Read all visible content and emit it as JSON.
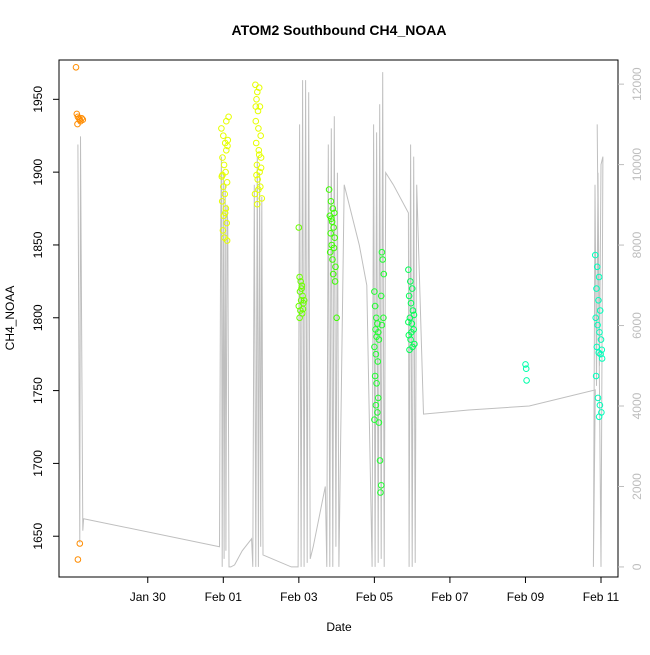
{
  "chart_data": {
    "type": "scatter",
    "title": "ATOM2 Southbound CH4_NOAA",
    "xlabel": "Date",
    "ylabel": "CH4_NOAA",
    "x_unit": "days since Jan 28",
    "xlim": [
      -0.35,
      14.45
    ],
    "ylim": [
      1622,
      1977
    ],
    "y2lim": [
      -250,
      12600
    ],
    "x_ticks": [
      {
        "value": 2,
        "label": "Jan 30"
      },
      {
        "value": 4,
        "label": "Feb 01"
      },
      {
        "value": 6,
        "label": "Feb 03"
      },
      {
        "value": 8,
        "label": "Feb 05"
      },
      {
        "value": 10,
        "label": "Feb 07"
      },
      {
        "value": 12,
        "label": "Feb 09"
      },
      {
        "value": 14,
        "label": "Feb 11"
      }
    ],
    "y_ticks": [
      1650,
      1700,
      1750,
      1800,
      1850,
      1900,
      1950
    ],
    "y_ticks_labels": [
      "1650",
      "1700",
      "1750",
      "1800",
      "1850",
      "1900",
      "1950"
    ],
    "y2_ticks": [
      0,
      2000,
      4000,
      6000,
      8000,
      10000,
      12000
    ],
    "y2_ticks_labels": [
      "0",
      "2000",
      "4000",
      "6000",
      "8000",
      "10000",
      "12000"
    ],
    "colors": {
      "orange": "#ff8c00",
      "yellow": "#e6ff00",
      "yellowgreen": "#b3ff00",
      "green": "#40ff00",
      "green2": "#00ff33",
      "green3": "#00ff66",
      "teal": "#00ffbb",
      "line": "#bfbfbf"
    },
    "series": [
      {
        "name": "orange",
        "color": "#ff8c00",
        "points": [
          [
            0.1,
            1972
          ],
          [
            0.12,
            1940
          ],
          [
            0.15,
            1938
          ],
          [
            0.18,
            1937
          ],
          [
            0.2,
            1936
          ],
          [
            0.22,
            1935
          ],
          [
            0.25,
            1937
          ],
          [
            0.14,
            1933
          ],
          [
            0.28,
            1936
          ],
          [
            0.2,
            1645
          ],
          [
            0.15,
            1634
          ]
        ]
      },
      {
        "name": "yellow-early",
        "color": "#e6ff00",
        "points": [
          [
            3.95,
            1930
          ],
          [
            4.0,
            1925
          ],
          [
            4.05,
            1920
          ],
          [
            4.08,
            1915
          ],
          [
            3.98,
            1910
          ],
          [
            4.02,
            1905
          ],
          [
            4.06,
            1900
          ],
          [
            3.96,
            1897
          ],
          [
            4.1,
            1893
          ],
          [
            4.0,
            1890
          ],
          [
            4.04,
            1885
          ],
          [
            3.97,
            1880
          ],
          [
            4.07,
            1875
          ],
          [
            4.01,
            1870
          ],
          [
            4.09,
            1865
          ],
          [
            3.99,
            1860
          ],
          [
            4.03,
            1855
          ],
          [
            4.1,
            1853
          ],
          [
            4.05,
            1872
          ],
          [
            3.98,
            1898
          ],
          [
            4.12,
            1922
          ],
          [
            4.08,
            1935
          ],
          [
            4.14,
            1938
          ],
          [
            4.11,
            1918
          ]
        ]
      },
      {
        "name": "yellow-late",
        "color": "#e6ff00",
        "points": [
          [
            4.85,
            1960
          ],
          [
            4.9,
            1955
          ],
          [
            4.95,
            1958
          ],
          [
            4.88,
            1950
          ],
          [
            4.92,
            1942
          ],
          [
            4.97,
            1945
          ],
          [
            4.86,
            1935
          ],
          [
            4.93,
            1930
          ],
          [
            4.99,
            1925
          ],
          [
            4.87,
            1920
          ],
          [
            4.94,
            1915
          ],
          [
            5.0,
            1910
          ],
          [
            4.89,
            1905
          ],
          [
            4.96,
            1900
          ],
          [
            4.91,
            1895
          ],
          [
            4.98,
            1890
          ],
          [
            4.84,
            1885
          ],
          [
            5.02,
            1882
          ],
          [
            4.9,
            1878
          ],
          [
            4.95,
            1912
          ],
          [
            4.88,
            1898
          ],
          [
            5.0,
            1903
          ],
          [
            4.86,
            1945
          ],
          [
            4.93,
            1888
          ]
        ]
      },
      {
        "name": "green-1",
        "color": "#6cff00",
        "points": [
          [
            6.0,
            1862
          ],
          [
            6.02,
            1828
          ],
          [
            6.05,
            1825
          ],
          [
            6.08,
            1822
          ],
          [
            6.03,
            1818
          ],
          [
            6.1,
            1815
          ],
          [
            6.06,
            1812
          ],
          [
            6.12,
            1810
          ],
          [
            6.0,
            1808
          ],
          [
            6.04,
            1805
          ],
          [
            6.09,
            1803
          ],
          [
            6.02,
            1800
          ],
          [
            6.14,
            1812
          ],
          [
            6.07,
            1820
          ],
          [
            6.11,
            1806
          ]
        ]
      },
      {
        "name": "green-2",
        "color": "#3cff00",
        "points": [
          [
            6.8,
            1888
          ],
          [
            6.85,
            1880
          ],
          [
            6.9,
            1875
          ],
          [
            6.82,
            1870
          ],
          [
            6.88,
            1866
          ],
          [
            6.92,
            1862
          ],
          [
            6.84,
            1858
          ],
          [
            6.95,
            1855
          ],
          [
            6.87,
            1850
          ],
          [
            6.93,
            1848
          ],
          [
            6.89,
            1840
          ],
          [
            6.97,
            1835
          ],
          [
            6.91,
            1830
          ],
          [
            6.96,
            1825
          ],
          [
            6.86,
            1868
          ],
          [
            7.0,
            1800
          ],
          [
            6.94,
            1872
          ],
          [
            6.83,
            1845
          ]
        ]
      },
      {
        "name": "green-3",
        "color": "#20ff30",
        "points": [
          [
            8.0,
            1818
          ],
          [
            8.02,
            1808
          ],
          [
            8.05,
            1800
          ],
          [
            8.08,
            1796
          ],
          [
            8.03,
            1792
          ],
          [
            8.1,
            1790
          ],
          [
            8.06,
            1787
          ],
          [
            8.12,
            1785
          ],
          [
            8.0,
            1780
          ],
          [
            8.04,
            1775
          ],
          [
            8.09,
            1770
          ],
          [
            8.02,
            1760
          ],
          [
            8.06,
            1755
          ],
          [
            8.1,
            1745
          ],
          [
            8.04,
            1740
          ],
          [
            8.08,
            1735
          ],
          [
            8.0,
            1730
          ],
          [
            8.12,
            1728
          ],
          [
            8.15,
            1702
          ],
          [
            8.18,
            1685
          ],
          [
            8.16,
            1680
          ],
          [
            8.2,
            1845
          ],
          [
            8.22,
            1840
          ],
          [
            8.25,
            1830
          ],
          [
            8.18,
            1815
          ],
          [
            8.2,
            1795
          ],
          [
            8.24,
            1800
          ]
        ]
      },
      {
        "name": "green-4",
        "color": "#00ff55",
        "points": [
          [
            8.9,
            1833
          ],
          [
            8.95,
            1825
          ],
          [
            9.0,
            1820
          ],
          [
            8.92,
            1815
          ],
          [
            8.97,
            1810
          ],
          [
            9.02,
            1805
          ],
          [
            8.94,
            1800
          ],
          [
            8.99,
            1796
          ],
          [
            9.04,
            1792
          ],
          [
            8.91,
            1788
          ],
          [
            8.96,
            1785
          ],
          [
            9.01,
            1780
          ],
          [
            8.93,
            1778
          ],
          [
            9.06,
            1782
          ],
          [
            8.98,
            1790
          ],
          [
            9.05,
            1802
          ],
          [
            8.9,
            1797
          ]
        ]
      },
      {
        "name": "teal-early",
        "color": "#00ffaa",
        "points": [
          [
            12.0,
            1768
          ],
          [
            12.02,
            1765
          ],
          [
            12.03,
            1757
          ]
        ]
      },
      {
        "name": "teal",
        "color": "#00ffbb",
        "points": [
          [
            13.85,
            1843
          ],
          [
            13.9,
            1835
          ],
          [
            13.95,
            1828
          ],
          [
            13.88,
            1820
          ],
          [
            13.93,
            1812
          ],
          [
            13.98,
            1805
          ],
          [
            13.86,
            1800
          ],
          [
            13.91,
            1795
          ],
          [
            13.96,
            1790
          ],
          [
            14.0,
            1785
          ],
          [
            13.89,
            1780
          ],
          [
            13.94,
            1776
          ],
          [
            13.99,
            1775
          ],
          [
            14.02,
            1778
          ],
          [
            13.87,
            1760
          ],
          [
            13.92,
            1745
          ],
          [
            13.97,
            1740
          ],
          [
            14.01,
            1735
          ],
          [
            13.95,
            1732
          ],
          [
            14.03,
            1772
          ]
        ]
      }
    ],
    "altitude_line": [
      [
        0.15,
        10500
      ],
      [
        0.2,
        600
      ],
      [
        0.22,
        10700
      ],
      [
        0.28,
        900
      ],
      [
        0.3,
        1200
      ],
      [
        3.9,
        500
      ],
      [
        3.93,
        8500
      ],
      [
        3.95,
        10200
      ],
      [
        3.97,
        0
      ],
      [
        4.0,
        9800
      ],
      [
        4.02,
        200
      ],
      [
        4.05,
        9500
      ],
      [
        4.07,
        400
      ],
      [
        4.1,
        9000
      ],
      [
        4.12,
        8500
      ],
      [
        4.15,
        0
      ],
      [
        4.2,
        0
      ],
      [
        4.3,
        50
      ],
      [
        4.5,
        400
      ],
      [
        4.75,
        700
      ],
      [
        4.78,
        0
      ],
      [
        4.82,
        9500
      ],
      [
        4.86,
        0
      ],
      [
        4.9,
        10200
      ],
      [
        4.93,
        0
      ],
      [
        4.96,
        9800
      ],
      [
        4.99,
        500
      ],
      [
        5.02,
        9200
      ],
      [
        5.05,
        300
      ],
      [
        5.8,
        0
      ],
      [
        5.85,
        0
      ],
      [
        5.98,
        0
      ],
      [
        6.02,
        11000
      ],
      [
        6.06,
        0
      ],
      [
        6.1,
        12100
      ],
      [
        6.14,
        0
      ],
      [
        6.18,
        12100
      ],
      [
        6.22,
        100
      ],
      [
        6.26,
        11800
      ],
      [
        6.3,
        200
      ],
      [
        6.38,
        500
      ],
      [
        6.7,
        2000
      ],
      [
        6.74,
        0
      ],
      [
        6.78,
        10500
      ],
      [
        6.82,
        0
      ],
      [
        6.86,
        10900
      ],
      [
        6.9,
        0
      ],
      [
        6.94,
        11200
      ],
      [
        6.98,
        500
      ],
      [
        7.02,
        9800
      ],
      [
        7.06,
        0
      ],
      [
        7.2,
        9500
      ],
      [
        7.6,
        8000
      ],
      [
        7.8,
        7000
      ],
      [
        7.94,
        0
      ],
      [
        7.98,
        11000
      ],
      [
        8.02,
        0
      ],
      [
        8.06,
        10800
      ],
      [
        8.1,
        100
      ],
      [
        8.14,
        11500
      ],
      [
        8.18,
        200
      ],
      [
        8.22,
        12300
      ],
      [
        8.26,
        0
      ],
      [
        8.3,
        9800
      ],
      [
        8.5,
        9500
      ],
      [
        8.9,
        8800
      ],
      [
        8.92,
        0
      ],
      [
        8.96,
        10500
      ],
      [
        9.0,
        0
      ],
      [
        9.04,
        10200
      ],
      [
        9.08,
        100
      ],
      [
        9.12,
        9500
      ],
      [
        9.3,
        3800
      ],
      [
        10.5,
        3900
      ],
      [
        12.1,
        4000
      ],
      [
        13.85,
        4400
      ],
      [
        13.8,
        0
      ],
      [
        13.84,
        9500
      ],
      [
        13.88,
        4500
      ],
      [
        13.92,
        9800
      ],
      [
        13.96,
        5000
      ],
      [
        14.0,
        10000
      ],
      [
        14.05,
        10200
      ],
      [
        14.0,
        0
      ],
      [
        13.9,
        11000
      ]
    ]
  }
}
